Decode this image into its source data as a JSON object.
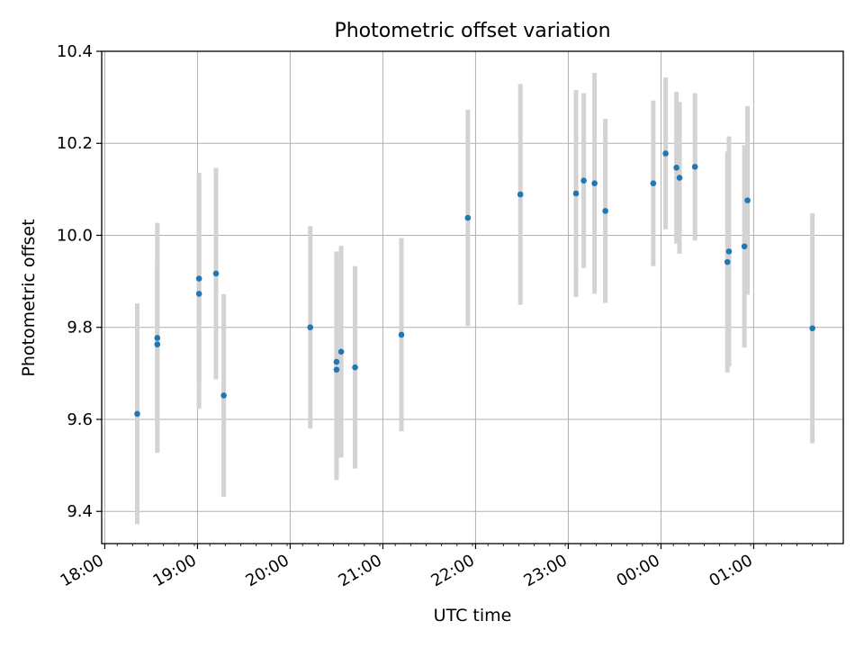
{
  "chart_data": {
    "type": "scatter",
    "title": "Photometric offset variation",
    "xlabel": "UTC time",
    "ylabel": "Photometric offset",
    "x_axis_type": "time",
    "xlim": [
      "2024-01-01T17:58",
      "2024-01-02T01:58"
    ],
    "ylim": [
      9.33,
      10.4
    ],
    "xticks": [
      "18:00",
      "19:00",
      "20:00",
      "21:00",
      "22:00",
      "23:00",
      "00:00",
      "01:00"
    ],
    "yticks": [
      "9.4",
      "9.6",
      "9.8",
      "10.0",
      "10.2",
      "10.4"
    ],
    "grid": true,
    "series": [
      {
        "color": "#1f77b4",
        "errorbar_color": "#d3d3d3",
        "points": [
          {
            "x": "2024-01-01T18:21",
            "y": 9.612,
            "err": 0.24
          },
          {
            "x": "2024-01-01T18:34",
            "y": 9.777,
            "err": 0.25
          },
          {
            "x": "2024-01-01T18:34",
            "y": 9.763,
            "err": 0.18
          },
          {
            "x": "2024-01-01T19:01",
            "y": 9.906,
            "err": 0.23
          },
          {
            "x": "2024-01-01T19:01",
            "y": 9.873,
            "err": 0.25
          },
          {
            "x": "2024-01-01T19:12",
            "y": 9.917,
            "err": 0.23
          },
          {
            "x": "2024-01-01T19:17",
            "y": 9.652,
            "err": 0.22
          },
          {
            "x": "2024-01-01T20:13",
            "y": 9.8,
            "err": 0.22
          },
          {
            "x": "2024-01-01T20:30",
            "y": 9.725,
            "err": 0.24
          },
          {
            "x": "2024-01-01T20:30",
            "y": 9.708,
            "err": 0.24
          },
          {
            "x": "2024-01-01T20:33",
            "y": 9.747,
            "err": 0.23
          },
          {
            "x": "2024-01-01T20:42",
            "y": 9.713,
            "err": 0.22
          },
          {
            "x": "2024-01-01T21:12",
            "y": 9.784,
            "err": 0.21
          },
          {
            "x": "2024-01-01T21:55",
            "y": 10.038,
            "err": 0.235
          },
          {
            "x": "2024-01-01T22:29",
            "y": 10.089,
            "err": 0.24
          },
          {
            "x": "2024-01-01T23:05",
            "y": 10.091,
            "err": 0.225
          },
          {
            "x": "2024-01-01T23:10",
            "y": 10.119,
            "err": 0.19
          },
          {
            "x": "2024-01-01T23:17",
            "y": 10.113,
            "err": 0.24
          },
          {
            "x": "2024-01-01T23:24",
            "y": 10.053,
            "err": 0.2
          },
          {
            "x": "2024-01-01T23:55",
            "y": 10.113,
            "err": 0.18
          },
          {
            "x": "2024-01-02T00:03",
            "y": 10.178,
            "err": 0.165
          },
          {
            "x": "2024-01-02T00:10",
            "y": 10.147,
            "err": 0.165
          },
          {
            "x": "2024-01-02T00:12",
            "y": 10.125,
            "err": 0.165
          },
          {
            "x": "2024-01-02T00:22",
            "y": 10.149,
            "err": 0.16
          },
          {
            "x": "2024-01-02T00:43",
            "y": 9.942,
            "err": 0.24
          },
          {
            "x": "2024-01-02T00:44",
            "y": 9.965,
            "err": 0.25
          },
          {
            "x": "2024-01-02T00:54",
            "y": 9.976,
            "err": 0.22
          },
          {
            "x": "2024-01-02T00:56",
            "y": 10.076,
            "err": 0.205
          },
          {
            "x": "2024-01-02T01:38",
            "y": 9.798,
            "err": 0.25
          }
        ]
      }
    ]
  }
}
